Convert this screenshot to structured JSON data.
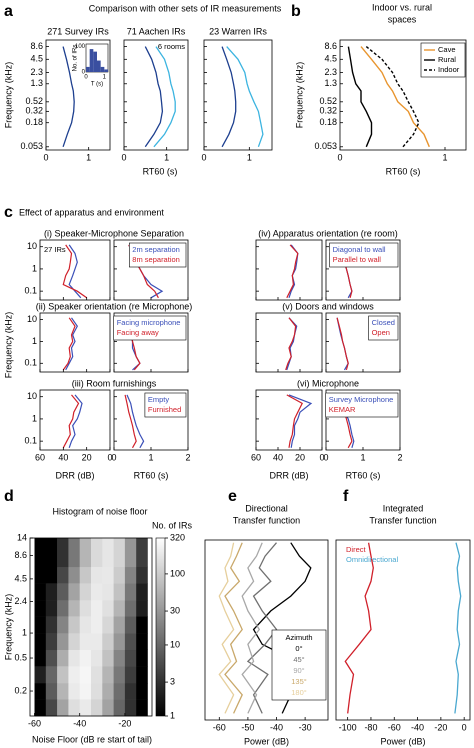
{
  "chart_data": [
    {
      "type": "line",
      "label": "a",
      "title": "Comparison with other sets of IR measurements",
      "y": [
        0.053,
        0.1,
        0.18,
        0.32,
        0.52,
        0.9,
        1.3,
        2.3,
        4.5,
        8.6
      ],
      "log_y": true,
      "ylim": [
        0.045,
        12
      ],
      "yticks": [
        0.053,
        0.18,
        0.32,
        0.52,
        1.3,
        2.3,
        4.5,
        8.6
      ],
      "ylabel": "Frequency (kHz)",
      "xlabel": "RT60 (s)",
      "xlim": [
        0,
        1.5
      ],
      "xticks": [
        0,
        1
      ],
      "panels": [
        {
          "title": "271 Survey IRs",
          "series": [
            {
              "color": "#1d3f8f",
              "values": [
                0.4,
                0.5,
                0.6,
                0.65,
                0.66,
                0.64,
                0.6,
                0.55,
                0.48,
                0.4
              ]
            }
          ]
        },
        {
          "title": "71 Aachen IRs",
          "note": "6 rooms",
          "series": [
            {
              "color": "#1d3f8f",
              "values": [
                0.5,
                0.7,
                0.85,
                0.9,
                0.88,
                0.85,
                0.8,
                0.75,
                0.65,
                0.5
              ]
            },
            {
              "color": "#3cb4e0",
              "values": [
                0.7,
                0.95,
                1.1,
                1.2,
                1.2,
                1.15,
                1.1,
                1.05,
                0.95,
                0.75
              ]
            }
          ]
        },
        {
          "title": "23 Warren IRs",
          "series": [
            {
              "color": "#1d3f8f",
              "values": [
                0.4,
                0.55,
                0.65,
                0.7,
                0.7,
                0.68,
                0.65,
                0.6,
                0.5,
                0.4
              ]
            },
            {
              "color": "#3cb4e0",
              "values": [
                1.2,
                1.3,
                1.25,
                1.2,
                1.1,
                1.0,
                0.95,
                0.9,
                0.75,
                0.5
              ]
            }
          ]
        }
      ]
    },
    {
      "type": "histogram",
      "ylabel": "No. of IRs",
      "xlabel": "T (s)",
      "color": "#3a4fa0",
      "bins": [
        0,
        0.2,
        0.4,
        0.6,
        0.8,
        1.0,
        1.2
      ],
      "counts": [
        20,
        90,
        80,
        45,
        20,
        10
      ],
      "xlim": [
        0,
        1.2
      ],
      "xticks": [
        0,
        1
      ],
      "ylim": [
        0,
        110
      ],
      "yticks": [
        0,
        100
      ]
    },
    {
      "type": "line",
      "label": "b",
      "title": [
        "Indoor vs. rural",
        "spaces"
      ],
      "legend": "upper right",
      "y": [
        0.053,
        0.1,
        0.18,
        0.32,
        0.52,
        0.9,
        1.3,
        2.3,
        4.5,
        8.6
      ],
      "log_y": true,
      "ylim": [
        0.045,
        12
      ],
      "yticks": [
        0.053,
        0.18,
        0.32,
        0.52,
        1.3,
        2.3,
        4.5,
        8.6
      ],
      "ylabel": "Frequency (kHz)",
      "xlabel": "RT60 (s)",
      "xlim": [
        0,
        1.2
      ],
      "xticks": [
        0,
        1
      ],
      "series": [
        {
          "name": "Cave",
          "color": "#e8952f",
          "values": [
            0.85,
            0.8,
            0.7,
            0.65,
            0.55,
            0.5,
            0.45,
            0.4,
            0.3,
            0.2
          ]
        },
        {
          "name": "Rural",
          "color": "#000000",
          "values": [
            0.25,
            0.3,
            0.3,
            0.25,
            0.2,
            0.2,
            0.15,
            0.12,
            0.1,
            0.08
          ]
        },
        {
          "name": "Indoor",
          "color": "#000000",
          "dash": true,
          "values": [
            0.6,
            0.7,
            0.75,
            0.7,
            0.65,
            0.6,
            0.55,
            0.5,
            0.4,
            0.25
          ]
        }
      ]
    },
    {
      "type": "line",
      "label": "c",
      "title": "Effect of apparatus and environment",
      "note": "27 IRs",
      "y": [
        0.05,
        0.1,
        0.2,
        0.5,
        1,
        2,
        5,
        12
      ],
      "log_y": true,
      "ylim": [
        0.04,
        20
      ],
      "yticks": [
        0.1,
        1,
        10
      ],
      "ylabel": "Frequency (kHz)",
      "drr_xlim": [
        60,
        0
      ],
      "drr_xticks": [
        60,
        40,
        20,
        0
      ],
      "drr_xlabel": "DRR (dB)",
      "rt60_xlim": [
        0,
        2
      ],
      "rt60_xticks": [
        0,
        1,
        2
      ],
      "rt60_xlabel": "RT60 (s)",
      "groups": [
        {
          "title": "(i) Speaker-Microphone Separation",
          "series": [
            {
              "name": "2m separation",
              "color": "#3a4fb8",
              "drr": [
                25,
                30,
                35,
                32,
                30,
                28,
                30,
                35
              ],
              "rt60": [
                1.0,
                1.3,
                1.0,
                0.8,
                0.7,
                0.6,
                0.5,
                0.4
              ]
            },
            {
              "name": "8m separation",
              "color": "#d0202a",
              "drr": [
                20,
                28,
                40,
                38,
                35,
                34,
                33,
                38
              ],
              "rt60": [
                1.2,
                1.1,
                0.9,
                0.8,
                0.7,
                0.6,
                0.5,
                0.4
              ]
            }
          ]
        },
        {
          "title": "(ii) Speaker orientation (re Microphone)",
          "series": [
            {
              "name": "Facing microphone",
              "color": "#3a4fb8",
              "drr": [
                38,
                35,
                32,
                33,
                30,
                32,
                28,
                33
              ],
              "rt60": [
                0.5,
                0.7,
                0.6,
                0.5,
                0.5,
                0.45,
                0.4,
                0.3
              ]
            },
            {
              "name": "Facing away",
              "color": "#d0202a",
              "drr": [
                40,
                36,
                34,
                35,
                32,
                33,
                30,
                35
              ],
              "rt60": [
                0.55,
                0.7,
                0.6,
                0.55,
                0.5,
                0.45,
                0.4,
                0.3
              ]
            }
          ]
        },
        {
          "title": "(iii) Room furnishings",
          "series": [
            {
              "name": "Empty",
              "color": "#3a4fb8",
              "drr": [
                35,
                33,
                30,
                32,
                28,
                26,
                24,
                30
              ],
              "rt60": [
                0.7,
                0.8,
                0.7,
                0.6,
                0.55,
                0.5,
                0.45,
                0.35
              ]
            },
            {
              "name": "Furnished",
              "color": "#d0202a",
              "drr": [
                40,
                37,
                34,
                35,
                32,
                31,
                27,
                33
              ],
              "rt60": [
                0.5,
                0.6,
                0.55,
                0.5,
                0.45,
                0.4,
                0.35,
                0.3
              ]
            }
          ]
        },
        {
          "title": "(iv) Apparatus orientation (re room)",
          "series": [
            {
              "name": "Diagonal to wall",
              "color": "#3a4fb8",
              "drr": [
                30,
                28,
                25,
                27,
                24,
                23,
                22,
                28
              ],
              "rt60": [
                0.6,
                0.7,
                0.65,
                0.6,
                0.55,
                0.5,
                0.45,
                0.35
              ]
            },
            {
              "name": "Parallel to wall",
              "color": "#d0202a",
              "drr": [
                32,
                29,
                26,
                27,
                25,
                24,
                22,
                29
              ],
              "rt60": [
                0.65,
                0.7,
                0.65,
                0.6,
                0.55,
                0.5,
                0.45,
                0.35
              ]
            }
          ]
        },
        {
          "title": "(v) Doors and windows",
          "series": [
            {
              "name": "Closed",
              "color": "#3a4fb8",
              "drr": [
                32,
                30,
                28,
                29,
                26,
                25,
                23,
                30
              ],
              "rt60": [
                0.5,
                0.6,
                0.55,
                0.5,
                0.45,
                0.4,
                0.35,
                0.3
              ]
            },
            {
              "name": "Open",
              "color": "#d0202a",
              "drr": [
                33,
                31,
                28,
                30,
                27,
                25,
                24,
                30
              ],
              "rt60": [
                0.55,
                0.6,
                0.55,
                0.5,
                0.45,
                0.42,
                0.36,
                0.3
              ]
            }
          ]
        },
        {
          "title": "(vi) Microphone",
          "series": [
            {
              "name": "Survey Microphone",
              "color": "#3a4fb8",
              "drr": [
                28,
                27,
                25,
                25,
                22,
                20,
                10,
                30
              ],
              "rt60": [
                0.7,
                0.75,
                0.7,
                0.65,
                0.6,
                0.5,
                0.3,
                0.2
              ]
            },
            {
              "name": "KEMAR",
              "color": "#d0202a",
              "drr": [
                30,
                29,
                27,
                26,
                25,
                22,
                18,
                32
              ],
              "rt60": [
                0.6,
                0.7,
                0.65,
                0.6,
                0.55,
                0.5,
                0.4,
                0.3
              ]
            }
          ]
        }
      ]
    },
    {
      "type": "heatmap",
      "label": "d",
      "title": "Histogram of noise floor",
      "colorbar_label": "No. of IRs",
      "xbins": [
        -60,
        -55,
        -50,
        -45,
        -40,
        -35,
        -30,
        -25,
        -20,
        -15,
        -10
      ],
      "ybins": [
        0.1,
        0.16,
        0.25,
        0.4,
        0.63,
        1,
        1.6,
        2.5,
        4,
        6.3,
        14
      ],
      "xlim": [
        -62,
        -8
      ],
      "xticks": [
        -60,
        -40,
        -20
      ],
      "ylim": [
        0.1,
        14
      ],
      "yticks": [
        0.2,
        0.5,
        1,
        2.4,
        4.5,
        8.6,
        14
      ],
      "log_y": true,
      "xlabel": "Noise Floor (dB re start of tail)",
      "ylabel": "Frequency (kHz)",
      "clim": [
        1,
        320
      ],
      "cticks": [
        1,
        3,
        10,
        30,
        100,
        320
      ],
      "log_c": true,
      "z": [
        [
          1,
          5,
          40,
          150,
          200,
          120,
          40,
          10,
          3,
          1
        ],
        [
          1,
          8,
          60,
          200,
          250,
          150,
          50,
          12,
          3,
          1
        ],
        [
          2,
          10,
          80,
          220,
          260,
          160,
          60,
          15,
          4,
          1
        ],
        [
          1,
          6,
          50,
          180,
          240,
          180,
          80,
          20,
          5,
          1
        ],
        [
          1,
          4,
          30,
          120,
          200,
          200,
          100,
          30,
          6,
          1
        ],
        [
          1,
          3,
          20,
          90,
          180,
          220,
          130,
          40,
          8,
          1
        ],
        [
          1,
          2,
          12,
          60,
          150,
          220,
          160,
          60,
          12,
          2
        ],
        [
          1,
          2,
          8,
          40,
          120,
          200,
          180,
          80,
          15,
          2
        ],
        [
          1,
          1,
          5,
          25,
          90,
          180,
          190,
          100,
          20,
          3
        ],
        [
          1,
          1,
          3,
          15,
          60,
          140,
          180,
          120,
          30,
          4
        ]
      ]
    },
    {
      "type": "line",
      "label": "e",
      "title": [
        "Directional",
        "Transfer function"
      ],
      "legend": "center right",
      "legend_title": "Azimuth",
      "y": [
        0.12,
        0.2,
        0.35,
        0.5,
        0.8,
        1.2,
        2,
        3,
        4.5,
        6.5,
        9,
        13
      ],
      "log_y": true,
      "ylim": [
        0.1,
        14
      ],
      "xlabel": "Power (dB)",
      "xlim": [
        -65,
        -22
      ],
      "xticks": [
        -60,
        -50,
        -40,
        -30
      ],
      "series": [
        {
          "name": "0°",
          "color": "#000000",
          "values": [
            -38,
            -35,
            -40,
            -33,
            -45,
            -48,
            -42,
            -35,
            -30,
            -28,
            -32,
            -35
          ]
        },
        {
          "name": "45°",
          "color": "#707070",
          "values": [
            -45,
            -48,
            -43,
            -50,
            -44,
            -40,
            -45,
            -48,
            -42,
            -46,
            -44,
            -40
          ]
        },
        {
          "name": "90°",
          "color": "#a8a8a8",
          "values": [
            -50,
            -47,
            -52,
            -48,
            -50,
            -46,
            -50,
            -52,
            -48,
            -50,
            -47,
            -45
          ]
        },
        {
          "name": "135°",
          "color": "#c9a86a",
          "values": [
            -55,
            -52,
            -58,
            -54,
            -56,
            -52,
            -55,
            -58,
            -53,
            -56,
            -54,
            -52
          ]
        },
        {
          "name": "180°",
          "color": "#e6cf9c",
          "values": [
            -58,
            -55,
            -60,
            -56,
            -59,
            -55,
            -58,
            -60,
            -57,
            -58,
            -56,
            -55
          ]
        }
      ]
    },
    {
      "type": "line",
      "label": "f",
      "title": [
        "Integrated",
        "Transfer function"
      ],
      "legend": "upper left",
      "y": [
        0.12,
        0.2,
        0.35,
        0.5,
        0.8,
        1.2,
        2,
        3,
        4.5,
        6.5,
        9,
        13
      ],
      "log_y": true,
      "ylim": [
        0.1,
        14
      ],
      "xlabel": "Power (dB)",
      "xlim": [
        -110,
        5
      ],
      "xticks": [
        -100,
        -80,
        -60,
        -40,
        -20,
        0
      ],
      "series": [
        {
          "name": "Direct",
          "color": "#d0202a",
          "values": [
            -100,
            -98,
            -95,
            -102,
            -90,
            -80,
            -82,
            -85,
            -80,
            -78,
            -80,
            -82
          ]
        },
        {
          "name": "Omnidirectional",
          "color": "#4aa8d0",
          "values": [
            -8,
            -6,
            -5,
            -7,
            -4,
            -6,
            -5,
            -3,
            -5,
            -6,
            -4,
            -7
          ]
        }
      ]
    }
  ]
}
